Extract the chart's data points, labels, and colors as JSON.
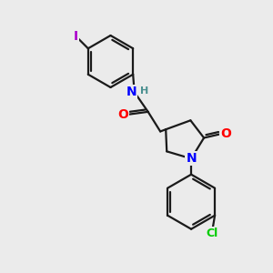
{
  "bg_color": "#ebebeb",
  "bond_color": "#1a1a1a",
  "atom_colors": {
    "N": "#0000ff",
    "O": "#ff0000",
    "Cl": "#00cc00",
    "I": "#aa00cc",
    "H": "#4a9090",
    "C": "#1a1a1a"
  },
  "bond_width": 1.6,
  "font_size_atom": 10
}
